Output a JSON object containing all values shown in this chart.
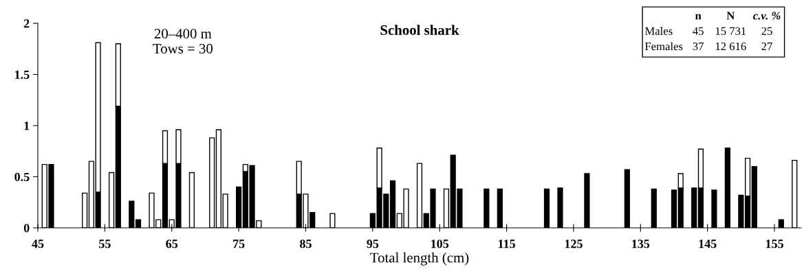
{
  "chart_data": {
    "type": "bar",
    "stacked": true,
    "title": "School shark",
    "xlabel": "Total length (cm)",
    "x": [
      46,
      47,
      52,
      53,
      54,
      56,
      57,
      59,
      60,
      62,
      63,
      64,
      65,
      66,
      68,
      71,
      72,
      73,
      75,
      76,
      77,
      78,
      84,
      85,
      86,
      89,
      95,
      96,
      97,
      98,
      99,
      100,
      102,
      103,
      104,
      106,
      107,
      108,
      112,
      114,
      121,
      123,
      127,
      133,
      137,
      140,
      141,
      143,
      144,
      146,
      148,
      150,
      151,
      152,
      156,
      158
    ],
    "series": [
      {
        "color": "#000000",
        "values": [
          null,
          0.62,
          null,
          null,
          0.35,
          null,
          1.19,
          0.26,
          0.08,
          null,
          null,
          0.63,
          null,
          0.63,
          null,
          null,
          null,
          null,
          0.4,
          0.55,
          0.61,
          null,
          0.33,
          null,
          0.15,
          null,
          0.14,
          0.39,
          0.33,
          0.46,
          null,
          null,
          null,
          0.14,
          0.38,
          null,
          0.71,
          0.38,
          0.38,
          0.38,
          0.38,
          0.39,
          0.53,
          0.57,
          0.38,
          0.37,
          0.39,
          0.39,
          0.39,
          0.37,
          0.78,
          0.32,
          0.31,
          0.6,
          0.08,
          null
        ]
      },
      {
        "color": "#ffffff",
        "values": [
          0.62,
          null,
          0.34,
          0.65,
          1.46,
          0.54,
          0.61,
          null,
          null,
          0.34,
          0.08,
          0.32,
          0.08,
          0.33,
          0.54,
          0.88,
          0.96,
          0.33,
          null,
          0.07,
          null,
          0.07,
          0.32,
          0.33,
          null,
          0.14,
          null,
          0.39,
          null,
          null,
          0.14,
          0.38,
          0.63,
          null,
          null,
          0.38,
          null,
          null,
          null,
          null,
          null,
          null,
          null,
          null,
          null,
          null,
          0.14,
          null,
          0.38,
          null,
          null,
          null,
          0.37,
          null,
          null,
          0.66
        ]
      }
    ],
    "xlim": [
      45,
      159
    ],
    "xticks": [
      45,
      55,
      65,
      75,
      85,
      95,
      105,
      115,
      125,
      135,
      145,
      155
    ],
    "ylim": [
      0,
      2
    ],
    "yticks": [
      0,
      0.5,
      1,
      1.5,
      2
    ],
    "grid": false,
    "annotations": [
      "20–400 m",
      "Tows = 30",
      "n",
      "N",
      "c.v. %",
      "Males",
      "45",
      "15 731",
      "25",
      "Females",
      "37",
      "12 616",
      "27"
    ]
  }
}
